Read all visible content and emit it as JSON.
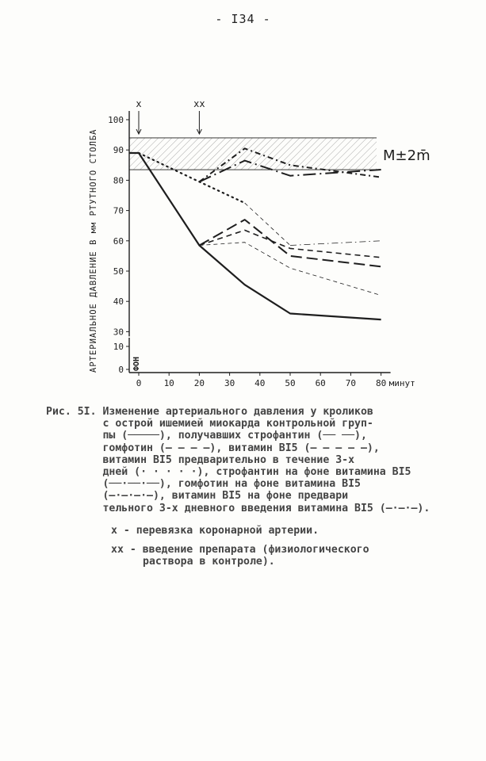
{
  "page_number": "- I34 -",
  "chart_data": {
    "type": "line",
    "ylabel": "АРТЕРИАЛЬНОЕ ДАВЛЕНИЕ В мм РТУТНОГО СТОЛБА",
    "xlabel": "минут",
    "x_ticks": [
      "0",
      "10",
      "20",
      "30",
      "40",
      "50",
      "60",
      "70",
      "80"
    ],
    "y_ticks_upper": [
      "100",
      "90",
      "80",
      "70",
      "60",
      "50",
      "40",
      "30"
    ],
    "y_ticks_lower": [
      "10",
      "0"
    ],
    "baseline_label": "ФОН",
    "ylim": [
      30,
      100
    ],
    "xlim": [
      0,
      80
    ],
    "band": {
      "label": "M±2m̄",
      "low": 83.5,
      "high": 94
    },
    "markers": [
      {
        "label": "x",
        "x": 0
      },
      {
        "label": "xx",
        "x": 20
      }
    ],
    "series": [
      {
        "style": "solid",
        "x": [
          -3,
          0,
          20,
          35,
          50,
          80
        ],
        "y": [
          89,
          89,
          58.5,
          45.5,
          36,
          34
        ]
      },
      {
        "style": "long-dash",
        "x": [
          20,
          35,
          50,
          80
        ],
        "y": [
          58.5,
          67,
          55,
          51.5
        ]
      },
      {
        "style": "dash",
        "x": [
          20,
          35,
          50,
          80
        ],
        "y": [
          58.5,
          63.5,
          57.5,
          54.5
        ]
      },
      {
        "style": "thin-dash",
        "x": [
          20,
          35,
          50,
          80
        ],
        "y": [
          58.5,
          59.5,
          51,
          42
        ]
      },
      {
        "style": "dotted",
        "x": [
          0,
          20,
          35
        ],
        "y": [
          89,
          79.5,
          72.5
        ]
      },
      {
        "style": "thin-dash",
        "x": [
          35,
          50
        ],
        "y": [
          72.5,
          58.5
        ]
      },
      {
        "style": "thin-dash-dot",
        "x": [
          50,
          80
        ],
        "y": [
          58.5,
          60
        ]
      },
      {
        "style": "long-dash-dot",
        "x": [
          20,
          35,
          50,
          80
        ],
        "y": [
          79.5,
          86.5,
          81.5,
          83.5
        ]
      },
      {
        "style": "dash-dot",
        "x": [
          20,
          35,
          50,
          80
        ],
        "y": [
          79.5,
          90.5,
          85,
          81
        ]
      }
    ]
  },
  "caption": {
    "lines": [
      "Рис. 5I. Изменение артериального давления у кроликов",
      "         с острой ишемией миокарда контрольной груп-",
      "         пы (─────), получавших строфантин (── ──),",
      "         гомфотин (– – – –), витамин BI5 (– – – – –),",
      "         витамин BI5 предварительно в течение 3-х",
      "         дней (· · · · ·), строфантин на фоне витамина BI5",
      "         (──·──·──), гомфотин на фоне витамина BI5",
      "         (–·–·–·–), витамин BI5 на фоне предвари",
      "         тельного 3-х дневного введения витамина BI5 (–·–·–)."
    ]
  },
  "notes": {
    "line1": "х - перевязка коронарной артерии.",
    "line2": "хх - введение препарата (физиологического",
    "line3": "раствора в контроле)."
  },
  "colors": {
    "ink": "#1e1e1e",
    "paper": "#fdfdfb",
    "caption": "#444444"
  }
}
